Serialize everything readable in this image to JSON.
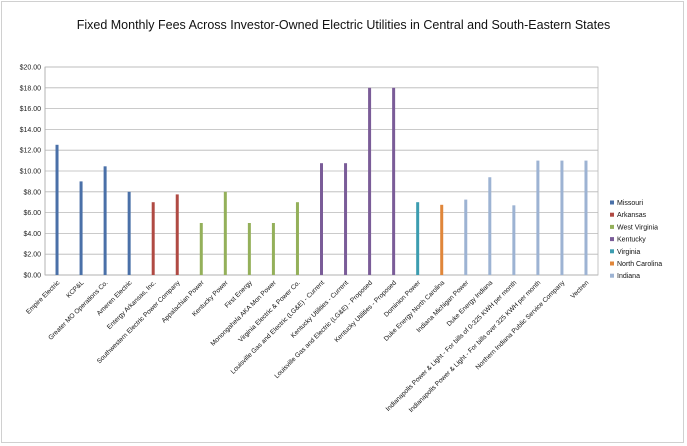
{
  "chart_data": {
    "type": "bar",
    "title": "Fixed Monthly Fees Across Investor-Owned Electric Utilities in Central and South-Eastern States",
    "xlabel": "",
    "ylabel": "",
    "ylim": [
      0,
      20
    ],
    "yticks": [
      "$0.00",
      "$2.00",
      "$4.00",
      "$6.00",
      "$8.00",
      "$10.00",
      "$12.00",
      "$14.00",
      "$16.00",
      "$18.00",
      "$20.00"
    ],
    "grid": true,
    "legend_position": "right",
    "categories": [
      "Empire Electric",
      "KCP&L",
      "Greater MO Operations Co.",
      "Ameren Electric",
      "Entergy Arkansas, Inc.",
      "Southwestern Electric Power Company",
      "Appalachian Power",
      "Kentucky Power",
      "First Energy",
      "Monongahela AKA Mon Power",
      "Virginia Electric & Power Co.",
      "Louisville Gas and Electric (LG&E) - Current",
      "Kentucky Utilities - Current",
      "Louisville Gas and Electric (LG&E) - Proposed",
      "Kentucky Utilities - Proposed",
      "Dominion Power",
      "Duke Energy North Carolina",
      "Indiana Michigan Power",
      "Duke Energy Indiana",
      "Indianapolis Power & Light - For bills of 0-325 KWH per month",
      "Indianapolis Power & Light - For bills over 325 KWH per month",
      "Northern Indiana Public Service Company",
      "Vectren"
    ],
    "series": [
      {
        "name": "Missouri",
        "color": "#4a70a8",
        "values": [
          12.52,
          9.0,
          10.45,
          8.0,
          null,
          null,
          null,
          null,
          null,
          null,
          null,
          null,
          null,
          null,
          null,
          null,
          null,
          null,
          null,
          null,
          null,
          null,
          null
        ]
      },
      {
        "name": "Arkansas",
        "color": "#b04a43",
        "values": [
          null,
          null,
          null,
          null,
          7.0,
          7.75,
          null,
          null,
          null,
          null,
          null,
          null,
          null,
          null,
          null,
          null,
          null,
          null,
          null,
          null,
          null,
          null,
          null
        ]
      },
      {
        "name": "West Virginia",
        "color": "#94b05a",
        "values": [
          null,
          null,
          null,
          null,
          null,
          null,
          5.0,
          8.0,
          5.0,
          5.0,
          7.0,
          null,
          null,
          null,
          null,
          null,
          null,
          null,
          null,
          null,
          null,
          null,
          null
        ]
      },
      {
        "name": "Kentucky",
        "color": "#7a5c98",
        "values": [
          null,
          null,
          null,
          null,
          null,
          null,
          null,
          null,
          null,
          null,
          null,
          10.75,
          10.75,
          18.0,
          18.0,
          null,
          null,
          null,
          null,
          null,
          null,
          null,
          null
        ]
      },
      {
        "name": "Virginia",
        "color": "#3c9db0",
        "values": [
          null,
          null,
          null,
          null,
          null,
          null,
          null,
          null,
          null,
          null,
          null,
          null,
          null,
          null,
          null,
          7.0,
          null,
          null,
          null,
          null,
          null,
          null,
          null
        ]
      },
      {
        "name": "North Carolina",
        "color": "#e0863a",
        "values": [
          null,
          null,
          null,
          null,
          null,
          null,
          null,
          null,
          null,
          null,
          null,
          null,
          null,
          null,
          null,
          null,
          6.75,
          null,
          null,
          null,
          null,
          null,
          null
        ]
      },
      {
        "name": "Indiana",
        "color": "#9db3d3",
        "values": [
          null,
          null,
          null,
          null,
          null,
          null,
          null,
          null,
          null,
          null,
          null,
          null,
          null,
          null,
          null,
          null,
          null,
          7.25,
          9.4,
          6.7,
          11.0,
          11.0,
          11.0
        ]
      }
    ]
  }
}
